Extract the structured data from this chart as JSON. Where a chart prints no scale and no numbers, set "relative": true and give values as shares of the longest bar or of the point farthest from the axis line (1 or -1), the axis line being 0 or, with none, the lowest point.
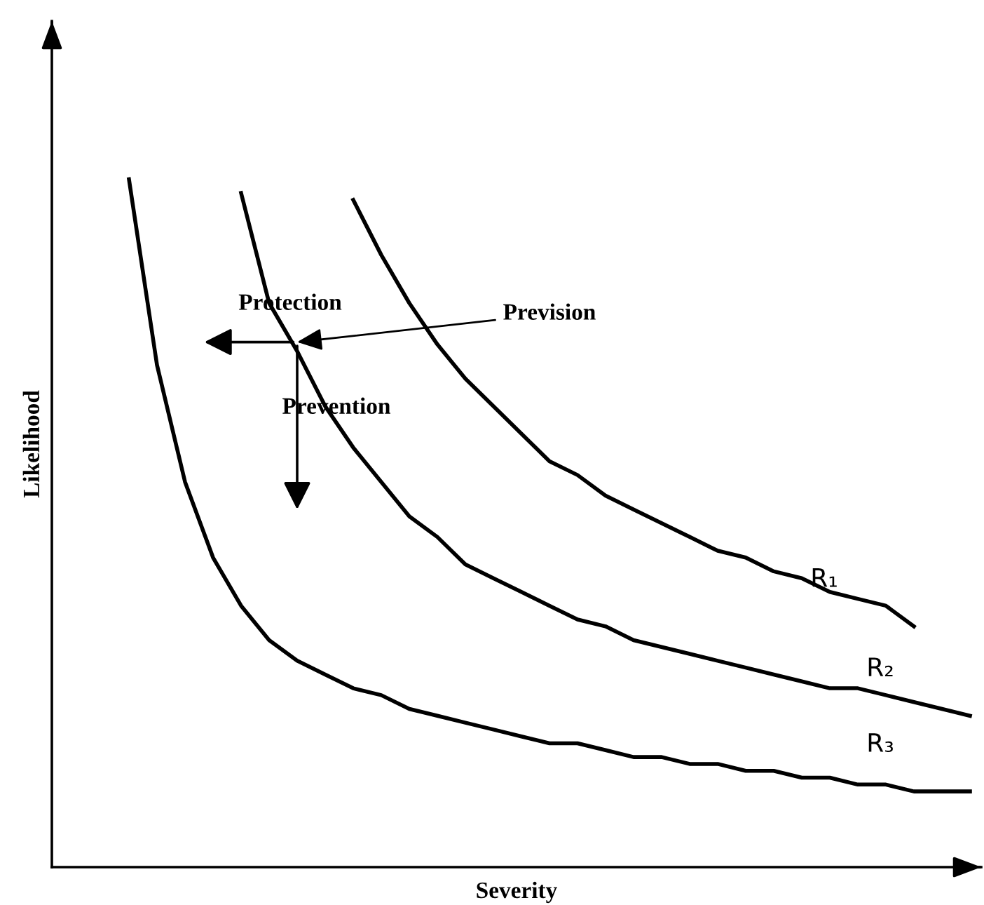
{
  "chart_data": {
    "type": "line",
    "relative": true,
    "xlabel": "Severity",
    "ylabel": "Likelihood",
    "categories": [
      null,
      null,
      null,
      null,
      null,
      null,
      null,
      null,
      null,
      null,
      null,
      null,
      null,
      null,
      null,
      null,
      null,
      null,
      null,
      null,
      null,
      null,
      null,
      null,
      null,
      null,
      null,
      null,
      null,
      null,
      null
    ],
    "series": [
      {
        "name": "R₁",
        "color": "#000000",
        "values": [
          null,
          null,
          null,
          null,
          null,
          null,
          null,
          null,
          0.97,
          0.89,
          0.82,
          0.76,
          0.71,
          0.67,
          0.63,
          0.59,
          0.57,
          0.54,
          0.52,
          0.5,
          0.48,
          0.46,
          0.45,
          0.43,
          0.42,
          0.4,
          0.39,
          0.38,
          0.35,
          null,
          null
        ]
      },
      {
        "name": "R₂",
        "color": "#000000",
        "values": [
          null,
          null,
          null,
          null,
          0.98,
          0.82,
          0.75,
          0.67,
          0.61,
          0.56,
          0.51,
          0.48,
          0.44,
          0.42,
          0.4,
          0.38,
          0.36,
          0.35,
          0.33,
          0.32,
          0.31,
          0.3,
          0.29,
          0.28,
          0.27,
          0.26,
          0.26,
          0.25,
          0.24,
          0.23,
          0.22
        ]
      },
      {
        "name": "R₃",
        "color": "#000000",
        "values": [
          1.0,
          0.73,
          0.56,
          0.45,
          0.38,
          0.33,
          0.3,
          0.28,
          0.26,
          0.25,
          0.23,
          0.22,
          0.21,
          0.2,
          0.19,
          0.18,
          0.18,
          0.17,
          0.16,
          0.16,
          0.15,
          0.15,
          0.14,
          0.14,
          0.13,
          0.13,
          0.12,
          0.12,
          0.11,
          0.11,
          0.11
        ]
      }
    ],
    "annotations": [
      "Protection",
      "Prevision",
      "Prevention"
    ],
    "legend": false,
    "grid": false,
    "marker": "none",
    "line_style": "solid"
  }
}
